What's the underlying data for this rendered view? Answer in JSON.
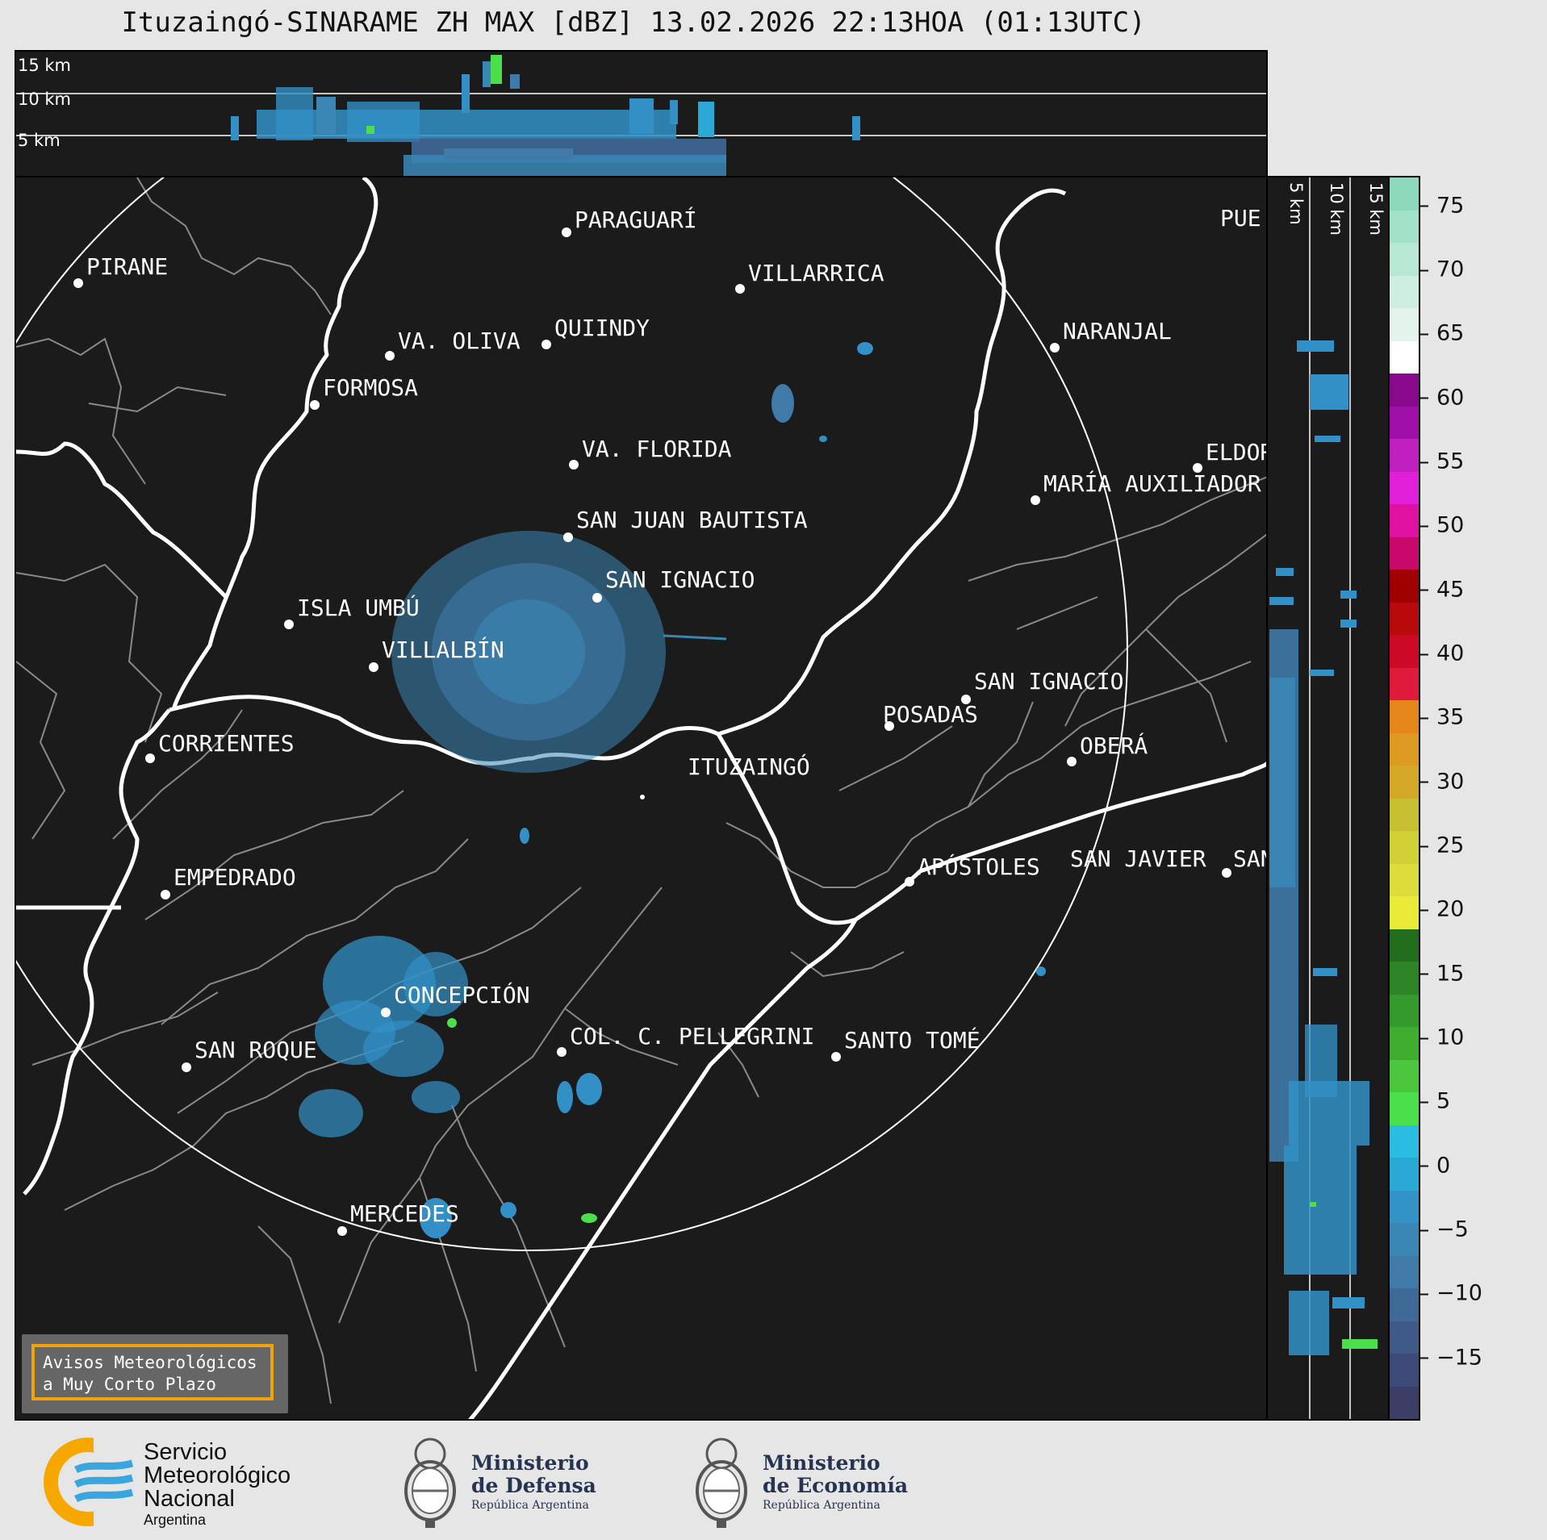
{
  "title": "Ituzaingó-SINARAME ZH MAX [dBZ] 13.02.2026 22:13HOA (01:13UTC)",
  "top_profile": {
    "altitude_labels": [
      "15 km",
      "10 km",
      "5 km"
    ]
  },
  "side_profile": {
    "altitude_labels": [
      "5 km",
      "10 km",
      "15 km"
    ]
  },
  "colorbar": {
    "ticks": [
      "75",
      "70",
      "65",
      "60",
      "55",
      "50",
      "45",
      "40",
      "35",
      "30",
      "25",
      "20",
      "15",
      "10",
      "5",
      "0",
      "−5",
      "−10",
      "−15"
    ],
    "range": [
      -20,
      77
    ],
    "colors": [
      "#3d3e66",
      "#3e4a78",
      "#3f5a88",
      "#3f6a98",
      "#3f7aa8",
      "#3a87b6",
      "#3294c6",
      "#2aa8d6",
      "#2bbce2",
      "#4be04b",
      "#4cc63c",
      "#3fac30",
      "#349a2b",
      "#2c8424",
      "#226e1c",
      "#eaea38",
      "#dcdc3c",
      "#cfcf36",
      "#c6c032",
      "#d4a828",
      "#dc9a22",
      "#e4861c",
      "#e01a3c",
      "#cc0a28",
      "#b80a0a",
      "#a00000",
      "#c8086a",
      "#e010a0",
      "#e020d8",
      "#c020c0",
      "#a010a8",
      "#8a0a8e",
      "#ffffff",
      "#e2f4ec",
      "#cdeee0",
      "#b6e8d4",
      "#a2e2c8",
      "#8ed8bc"
    ]
  },
  "map": {
    "radar_site": "ITUZAINGÓ",
    "cities": [
      {
        "name": "PARAGUARÍ"
      },
      {
        "name": "VILLARRICA"
      },
      {
        "name": "PIRANE"
      },
      {
        "name": "QUIINDY"
      },
      {
        "name": "VA. OLIVA"
      },
      {
        "name": "NARANJAL"
      },
      {
        "name": "FORMOSA"
      },
      {
        "name": "VA. FLORIDA"
      },
      {
        "name": "ELDOR"
      },
      {
        "name": "MARÍA AUXILIADOR"
      },
      {
        "name": "SAN JUAN BAUTISTA"
      },
      {
        "name": "SAN IGNACIO"
      },
      {
        "name": "ISLA UMBÚ"
      },
      {
        "name": "VILLALBÍN"
      },
      {
        "name": "SAN IGNACIO"
      },
      {
        "name": "POSADAS"
      },
      {
        "name": "CORRIENTES"
      },
      {
        "name": "OBERÁ"
      },
      {
        "name": "ITUZAINGÓ"
      },
      {
        "name": "APÓSTOLES"
      },
      {
        "name": "SAN JAVIER"
      },
      {
        "name": "SAN"
      },
      {
        "name": "EMPEDRADO"
      },
      {
        "name": "CONCEPCIÓN"
      },
      {
        "name": "COL. C. PELLEGRINI"
      },
      {
        "name": "SANTO TOMÉ"
      },
      {
        "name": "SAN ROQUE"
      },
      {
        "name": "MERCEDES"
      },
      {
        "name": "PUE"
      }
    ]
  },
  "notice": {
    "line1": "Avisos Meteorológicos",
    "line2": "a Muy Corto Plazo"
  },
  "logos": {
    "smn": {
      "line1": "Servicio",
      "line2": "Meteorológico",
      "line3": "Nacional",
      "line4": "Argentina"
    },
    "defensa": {
      "line1": "Ministerio",
      "line2": "de Defensa",
      "line3": "República Argentina"
    },
    "economia": {
      "line1": "Ministerio",
      "line2": "de Economía",
      "line3": "República Argentina"
    }
  }
}
